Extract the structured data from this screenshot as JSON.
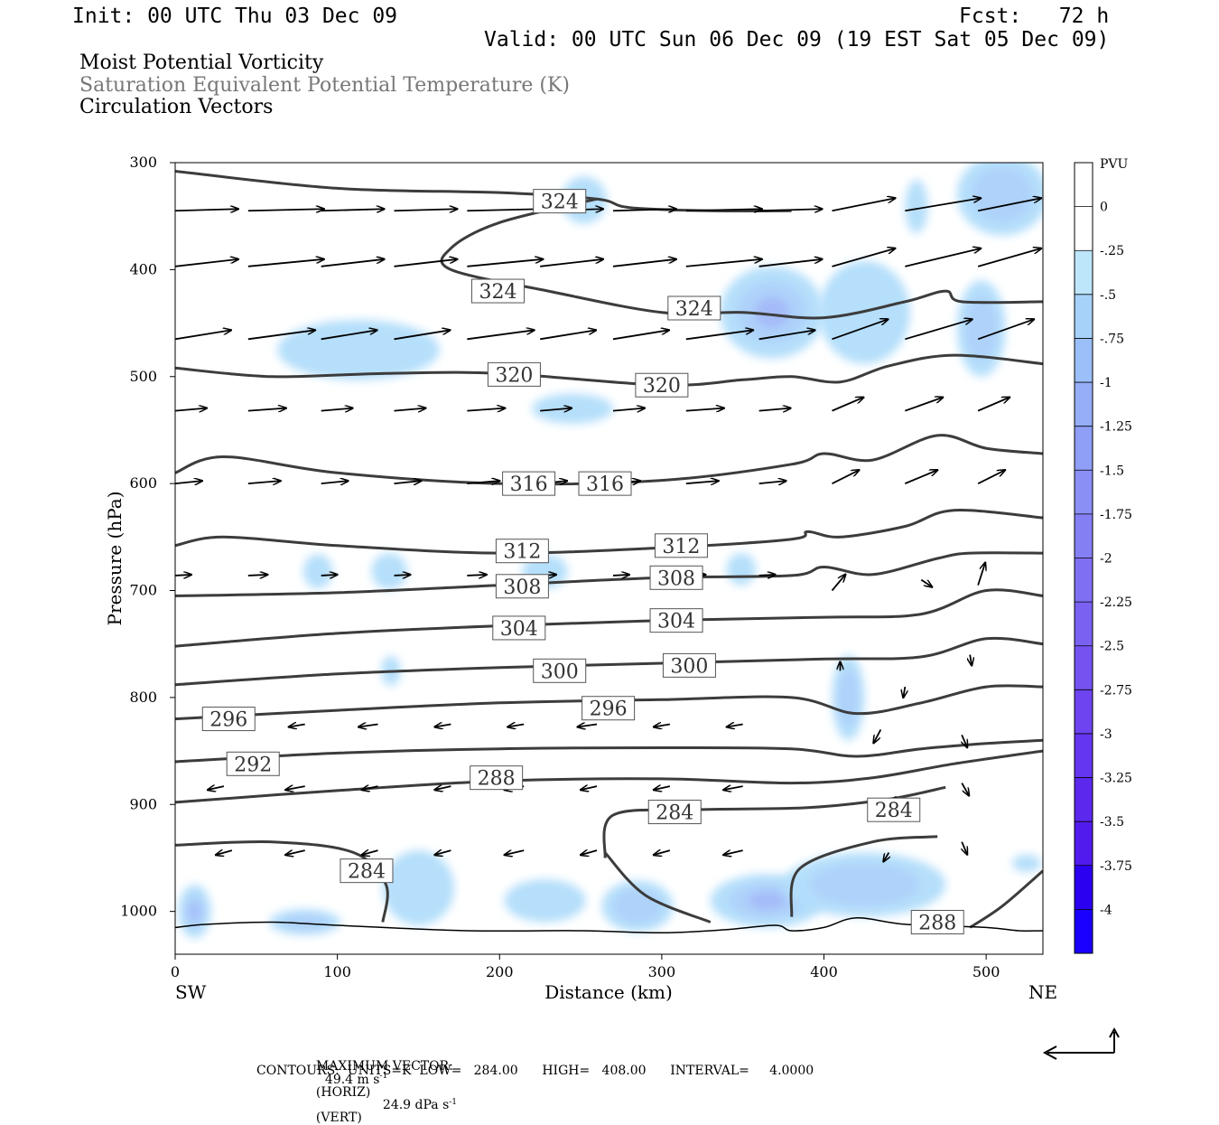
{
  "header": {
    "init": "Init: 00 UTC Thu 03 Dec 09",
    "fcst": "Fcst:   72 h",
    "valid": "Valid: 00 UTC Sun 06 Dec 09 (19 EST Sat 05 Dec 09)"
  },
  "fields": {
    "field1": "Moist Potential Vorticity",
    "field2": "Saturation Equivalent Potential Temperature (K)",
    "field3": "Circulation Vectors"
  },
  "footer": {
    "max_vector_label": "MAXIMUM VECTOR:",
    "horiz": "49.4 m s",
    "horiz_tag": "(HORIZ)",
    "vert": "24.9 dPa s",
    "vert_tag": "(VERT)",
    "sup": "-1",
    "contours": "CONTOURS:  UNITS=K  LOW=   284.00      HIGH=   408.00      INTERVAL=     4.0000"
  },
  "chart_data": {
    "type": "heatmap",
    "xlabel": "Distance (km)",
    "ylabel": "Pressure (hPa)",
    "xlim": [
      0,
      535
    ],
    "ylim": [
      1040,
      300
    ],
    "x_ticks": [
      0,
      100,
      200,
      300,
      400,
      500
    ],
    "y_ticks": [
      300,
      400,
      500,
      600,
      700,
      800,
      900,
      1000
    ],
    "left_end_label": "SW",
    "right_end_label": "NE",
    "colorbar": {
      "unit": "PVU",
      "levels": [
        "0",
        "-.25",
        "-.5",
        "-.75",
        "-1",
        "-1.25",
        "-1.5",
        "-1.75",
        "-2",
        "-2.25",
        "-2.5",
        "-2.75",
        "-3",
        "-3.25",
        "-3.5",
        "-3.75",
        "-4"
      ],
      "colors": [
        "#ffffff",
        "#ffffff",
        "#bde6fb",
        "#a6d2fa",
        "#9bbff8",
        "#95aef7",
        "#8f9ef6",
        "#8a8ff5",
        "#857ff4",
        "#7f70f3",
        "#7a61f2",
        "#7453f1",
        "#6d44f0",
        "#6536ef",
        "#5c28ee",
        "#521bed",
        "#2b00f0",
        "#1a00ff"
      ]
    },
    "mpv_blobs": [
      {
        "x": 252,
        "p": 335,
        "rx": 14,
        "rp": 22,
        "level": 1
      },
      {
        "x": 457,
        "p": 341,
        "rx": 7,
        "rp": 25,
        "level": 1
      },
      {
        "x": 510,
        "p": 330,
        "rx": 28,
        "rp": 38,
        "level": 2
      },
      {
        "x": 113,
        "p": 475,
        "rx": 50,
        "rp": 28,
        "level": 1
      },
      {
        "x": 368,
        "p": 440,
        "rx": 32,
        "rp": 43,
        "level": 3
      },
      {
        "x": 425,
        "p": 440,
        "rx": 28,
        "rp": 48,
        "level": 1
      },
      {
        "x": 497,
        "p": 455,
        "rx": 15,
        "rp": 45,
        "level": 2
      },
      {
        "x": 245,
        "p": 530,
        "rx": 25,
        "rp": 14,
        "level": 1
      },
      {
        "x": 88,
        "p": 682,
        "rx": 9,
        "rp": 16,
        "level": 1
      },
      {
        "x": 132,
        "p": 682,
        "rx": 11,
        "rp": 17,
        "level": 1
      },
      {
        "x": 228,
        "p": 682,
        "rx": 14,
        "rp": 16,
        "level": 1
      },
      {
        "x": 349,
        "p": 680,
        "rx": 9,
        "rp": 15,
        "level": 1
      },
      {
        "x": 415,
        "p": 800,
        "rx": 10,
        "rp": 40,
        "level": 2
      },
      {
        "x": 133,
        "p": 775,
        "rx": 6,
        "rp": 14,
        "level": 1
      },
      {
        "x": 12,
        "p": 1000,
        "rx": 10,
        "rp": 25,
        "level": 3
      },
      {
        "x": 80,
        "p": 1010,
        "rx": 22,
        "rp": 12,
        "level": 2
      },
      {
        "x": 150,
        "p": 978,
        "rx": 22,
        "rp": 35,
        "level": 1
      },
      {
        "x": 228,
        "p": 990,
        "rx": 25,
        "rp": 20,
        "level": 1
      },
      {
        "x": 285,
        "p": 995,
        "rx": 22,
        "rp": 24,
        "level": 2
      },
      {
        "x": 365,
        "p": 990,
        "rx": 35,
        "rp": 25,
        "level": 3
      },
      {
        "x": 425,
        "p": 975,
        "rx": 50,
        "rp": 30,
        "level": 2
      },
      {
        "x": 525,
        "p": 955,
        "rx": 9,
        "rp": 8,
        "level": 1
      }
    ],
    "theta_es_contours": [
      {
        "value": 284,
        "points": [
          [
            0,
            938
          ],
          [
            60,
            935
          ],
          [
            110,
            945
          ],
          [
            130,
            975
          ],
          [
            128,
            1010
          ]
        ]
      },
      {
        "value": 284,
        "points": [
          [
            265,
            950
          ],
          [
            270,
            910
          ],
          [
            320,
            905
          ],
          [
            390,
            903
          ],
          [
            440,
            895
          ],
          [
            475,
            884
          ]
        ]
      },
      {
        "value": 284,
        "points": [
          [
            265,
            945
          ],
          [
            290,
            985
          ],
          [
            330,
            1010
          ]
        ]
      },
      {
        "value": 284,
        "points": [
          [
            380,
            1005
          ],
          [
            385,
            960
          ],
          [
            430,
            935
          ],
          [
            470,
            930
          ]
        ]
      },
      {
        "value": 288,
        "points": [
          [
            0,
            898
          ],
          [
            100,
            887
          ],
          [
            200,
            878
          ],
          [
            300,
            876
          ],
          [
            380,
            880
          ],
          [
            430,
            875
          ],
          [
            480,
            862
          ],
          [
            535,
            850
          ]
        ]
      },
      {
        "value": 288,
        "points": [
          [
            490,
            1015
          ],
          [
            510,
            995
          ],
          [
            535,
            962
          ]
        ]
      },
      {
        "value": 292,
        "points": [
          [
            0,
            860
          ],
          [
            100,
            852
          ],
          [
            200,
            848
          ],
          [
            300,
            847
          ],
          [
            380,
            848
          ],
          [
            420,
            855
          ],
          [
            460,
            848
          ],
          [
            500,
            843
          ],
          [
            535,
            840
          ]
        ]
      },
      {
        "value": 296,
        "points": [
          [
            0,
            820
          ],
          [
            100,
            812
          ],
          [
            200,
            805
          ],
          [
            300,
            802
          ],
          [
            380,
            800
          ],
          [
            420,
            815
          ],
          [
            460,
            805
          ],
          [
            500,
            790
          ],
          [
            535,
            790
          ]
        ]
      },
      {
        "value": 300,
        "points": [
          [
            0,
            788
          ],
          [
            100,
            778
          ],
          [
            200,
            772
          ],
          [
            300,
            768
          ],
          [
            400,
            764
          ],
          [
            460,
            762
          ],
          [
            500,
            745
          ],
          [
            535,
            750
          ]
        ]
      },
      {
        "value": 304,
        "points": [
          [
            0,
            752
          ],
          [
            100,
            740
          ],
          [
            200,
            733
          ],
          [
            300,
            728
          ],
          [
            400,
            725
          ],
          [
            460,
            722
          ],
          [
            500,
            700
          ],
          [
            535,
            705
          ]
        ]
      },
      {
        "value": 308,
        "points": [
          [
            0,
            705
          ],
          [
            100,
            702
          ],
          [
            200,
            695
          ],
          [
            300,
            688
          ],
          [
            380,
            686
          ],
          [
            400,
            678
          ],
          [
            430,
            685
          ],
          [
            470,
            670
          ],
          [
            490,
            665
          ],
          [
            535,
            665
          ]
        ]
      },
      {
        "value": 312,
        "points": [
          [
            0,
            658
          ],
          [
            30,
            650
          ],
          [
            100,
            658
          ],
          [
            200,
            665
          ],
          [
            300,
            660
          ],
          [
            380,
            652
          ],
          [
            390,
            645
          ],
          [
            410,
            650
          ],
          [
            450,
            640
          ],
          [
            480,
            625
          ],
          [
            535,
            632
          ]
        ]
      },
      {
        "value": 316,
        "points": [
          [
            0,
            590
          ],
          [
            30,
            575
          ],
          [
            100,
            590
          ],
          [
            200,
            600
          ],
          [
            300,
            597
          ],
          [
            380,
            582
          ],
          [
            400,
            572
          ],
          [
            430,
            578
          ],
          [
            470,
            555
          ],
          [
            500,
            567
          ],
          [
            535,
            572
          ]
        ]
      },
      {
        "value": 320,
        "points": [
          [
            0,
            492
          ],
          [
            60,
            500
          ],
          [
            130,
            497
          ],
          [
            200,
            497
          ],
          [
            300,
            508
          ],
          [
            350,
            503
          ],
          [
            380,
            500
          ],
          [
            410,
            505
          ],
          [
            440,
            490
          ],
          [
            480,
            480
          ],
          [
            535,
            488
          ]
        ]
      },
      {
        "value": 324,
        "points": [
          [
            0,
            308
          ],
          [
            100,
            324
          ],
          [
            200,
            328
          ],
          [
            260,
            334
          ],
          [
            280,
            342
          ],
          [
            330,
            345
          ],
          [
            380,
            345
          ]
        ]
      },
      {
        "value": 324,
        "points": [
          [
            260,
            334
          ],
          [
            200,
            356
          ],
          [
            170,
            380
          ],
          [
            170,
            400
          ],
          [
            230,
            420
          ],
          [
            300,
            440
          ],
          [
            350,
            440
          ],
          [
            400,
            445
          ],
          [
            450,
            430
          ],
          [
            475,
            420
          ],
          [
            485,
            430
          ],
          [
            535,
            430
          ]
        ]
      }
    ],
    "contour_labels": [
      {
        "text": "324",
        "x": 237,
        "p": 336
      },
      {
        "text": "324",
        "x": 199,
        "p": 420
      },
      {
        "text": "324",
        "x": 320,
        "p": 436
      },
      {
        "text": "320",
        "x": 209,
        "p": 498
      },
      {
        "text": "320",
        "x": 300,
        "p": 508
      },
      {
        "text": "316",
        "x": 218,
        "p": 600
      },
      {
        "text": "316",
        "x": 265,
        "p": 600
      },
      {
        "text": "312",
        "x": 214,
        "p": 663
      },
      {
        "text": "312",
        "x": 312,
        "p": 658
      },
      {
        "text": "308",
        "x": 214,
        "p": 696
      },
      {
        "text": "308",
        "x": 309,
        "p": 688
      },
      {
        "text": "304",
        "x": 212,
        "p": 735
      },
      {
        "text": "304",
        "x": 309,
        "p": 728
      },
      {
        "text": "300",
        "x": 237,
        "p": 775
      },
      {
        "text": "300",
        "x": 317,
        "p": 770
      },
      {
        "text": "296",
        "x": 33,
        "p": 820
      },
      {
        "text": "296",
        "x": 267,
        "p": 810
      },
      {
        "text": "292",
        "x": 48,
        "p": 862
      },
      {
        "text": "288",
        "x": 198,
        "p": 875
      },
      {
        "text": "284",
        "x": 308,
        "p": 907
      },
      {
        "text": "284",
        "x": 443,
        "p": 905
      },
      {
        "text": "284",
        "x": 118,
        "p": 962
      },
      {
        "text": "288",
        "x": 470,
        "p": 1010
      }
    ],
    "surface_line": [
      [
        0,
        1015
      ],
      [
        20,
        1012
      ],
      [
        60,
        1010
      ],
      [
        100,
        1013
      ],
      [
        180,
        1018
      ],
      [
        250,
        1018
      ],
      [
        300,
        1020
      ],
      [
        340,
        1017
      ],
      [
        370,
        1013
      ],
      [
        380,
        1018
      ],
      [
        400,
        1015
      ],
      [
        420,
        1006
      ],
      [
        450,
        1012
      ],
      [
        500,
        1015
      ],
      [
        520,
        1018
      ],
      [
        535,
        1018
      ]
    ]
  }
}
